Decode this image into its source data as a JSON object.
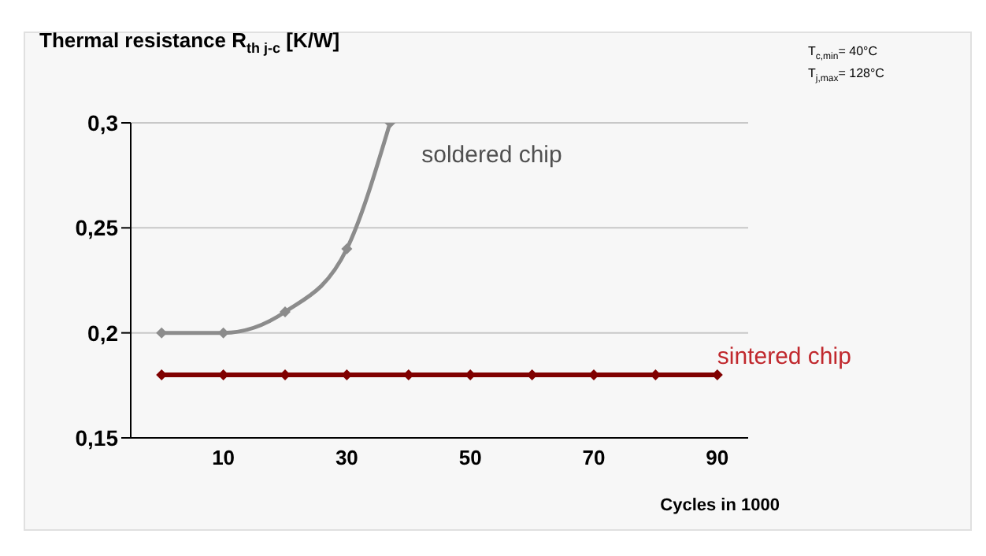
{
  "chart_data": {
    "type": "line",
    "title": "Thermal resistance  R$_{th j-c}$ [K/W]",
    "xlabel": "Cycles in 1000",
    "annotations": [
      "T$_{c,min}$=  40°C",
      "T$_{j,max}$= 128°C"
    ],
    "series": [
      {
        "name": "soldered chip",
        "color": "#8c8c8c",
        "x": [
          0,
          10,
          20,
          30,
          37
        ],
        "values": [
          0.2,
          0.2,
          0.21,
          0.24,
          0.3
        ]
      },
      {
        "name": "sintered chip",
        "color": "#800000",
        "x": [
          0,
          10,
          20,
          30,
          40,
          50,
          60,
          70,
          80,
          90
        ],
        "values": [
          0.18,
          0.18,
          0.18,
          0.18,
          0.18,
          0.18,
          0.18,
          0.18,
          0.18,
          0.18
        ]
      }
    ],
    "xlim": [
      -5,
      95
    ],
    "xticks": [
      10,
      30,
      50,
      70,
      90
    ],
    "ylim": [
      0.15,
      0.3
    ],
    "yticks": [
      {
        "value": 0.15,
        "label": "0,15"
      },
      {
        "value": 0.2,
        "label": "0,2"
      },
      {
        "value": 0.25,
        "label": "0,25"
      },
      {
        "value": 0.3,
        "label": "0,3"
      }
    ],
    "grid": "y",
    "marker": "diamond",
    "line_style": "solid",
    "legend": false
  }
}
